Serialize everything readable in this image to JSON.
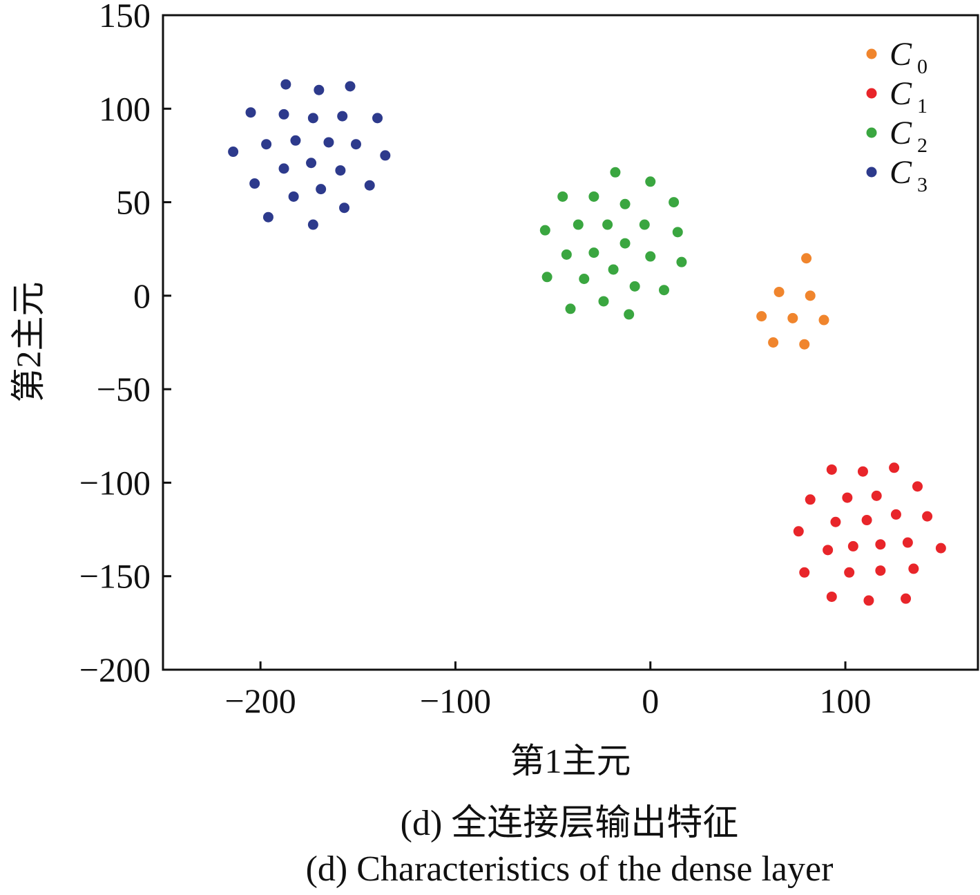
{
  "caption": {
    "zh": "(d)  全连接层输出特征",
    "en": "(d)  Characteristics of the dense layer"
  },
  "chart_data": {
    "type": "scatter",
    "title": "",
    "xlabel": "第1主元",
    "ylabel": "第2主元",
    "xlim": [
      -250,
      168
    ],
    "ylim": [
      -200,
      150
    ],
    "xticks": [
      -200,
      -100,
      0,
      100
    ],
    "yticks": [
      150,
      100,
      50,
      0,
      -50,
      -100,
      -150,
      -200
    ],
    "xtick_labels": [
      "−200",
      "−100",
      "0",
      "100"
    ],
    "ytick_labels": [
      "150",
      "100",
      "50",
      "0",
      "−50",
      "−100",
      "−150",
      "−200"
    ],
    "grid": false,
    "legend_position": "top-right",
    "series": [
      {
        "name": "C0",
        "label_main": "C",
        "label_sub": "0",
        "color": "#f0852d",
        "points": [
          [
            80,
            20
          ],
          [
            66,
            2
          ],
          [
            82,
            0
          ],
          [
            57,
            -11
          ],
          [
            73,
            -12
          ],
          [
            89,
            -13
          ],
          [
            63,
            -25
          ],
          [
            79,
            -26
          ]
        ]
      },
      {
        "name": "C1",
        "label_main": "C",
        "label_sub": "1",
        "color": "#e8252a",
        "points": [
          [
            93,
            -93
          ],
          [
            109,
            -94
          ],
          [
            125,
            -92
          ],
          [
            137,
            -102
          ],
          [
            82,
            -109
          ],
          [
            101,
            -108
          ],
          [
            116,
            -107
          ],
          [
            95,
            -121
          ],
          [
            111,
            -120
          ],
          [
            126,
            -117
          ],
          [
            142,
            -118
          ],
          [
            76,
            -126
          ],
          [
            104,
            -134
          ],
          [
            118,
            -133
          ],
          [
            132,
            -132
          ],
          [
            149,
            -135
          ],
          [
            91,
            -136
          ],
          [
            79,
            -148
          ],
          [
            102,
            -148
          ],
          [
            118,
            -147
          ],
          [
            135,
            -146
          ],
          [
            93,
            -161
          ],
          [
            112,
            -163
          ],
          [
            131,
            -162
          ]
        ]
      },
      {
        "name": "C2",
        "label_main": "C",
        "label_sub": "2",
        "color": "#3aa640",
        "points": [
          [
            -18,
            66
          ],
          [
            0,
            61
          ],
          [
            -45,
            53
          ],
          [
            -29,
            53
          ],
          [
            -13,
            49
          ],
          [
            12,
            50
          ],
          [
            -37,
            38
          ],
          [
            -22,
            38
          ],
          [
            -3,
            38
          ],
          [
            14,
            34
          ],
          [
            -54,
            35
          ],
          [
            -13,
            28
          ],
          [
            -29,
            23
          ],
          [
            -43,
            22
          ],
          [
            0,
            21
          ],
          [
            16,
            18
          ],
          [
            -19,
            14
          ],
          [
            -53,
            10
          ],
          [
            -34,
            9
          ],
          [
            -8,
            5
          ],
          [
            7,
            3
          ],
          [
            -24,
            -3
          ],
          [
            -41,
            -7
          ],
          [
            -11,
            -10
          ]
        ]
      },
      {
        "name": "C3",
        "label_main": "C",
        "label_sub": "3",
        "color": "#2d3a8c",
        "points": [
          [
            -187,
            113
          ],
          [
            -170,
            110
          ],
          [
            -154,
            112
          ],
          [
            -205,
            98
          ],
          [
            -188,
            97
          ],
          [
            -173,
            95
          ],
          [
            -158,
            96
          ],
          [
            -140,
            95
          ],
          [
            -197,
            81
          ],
          [
            -182,
            83
          ],
          [
            -165,
            82
          ],
          [
            -151,
            81
          ],
          [
            -214,
            77
          ],
          [
            -136,
            75
          ],
          [
            -188,
            68
          ],
          [
            -174,
            71
          ],
          [
            -159,
            67
          ],
          [
            -203,
            60
          ],
          [
            -169,
            57
          ],
          [
            -144,
            59
          ],
          [
            -183,
            53
          ],
          [
            -157,
            47
          ],
          [
            -196,
            42
          ],
          [
            -173,
            38
          ]
        ]
      }
    ]
  }
}
